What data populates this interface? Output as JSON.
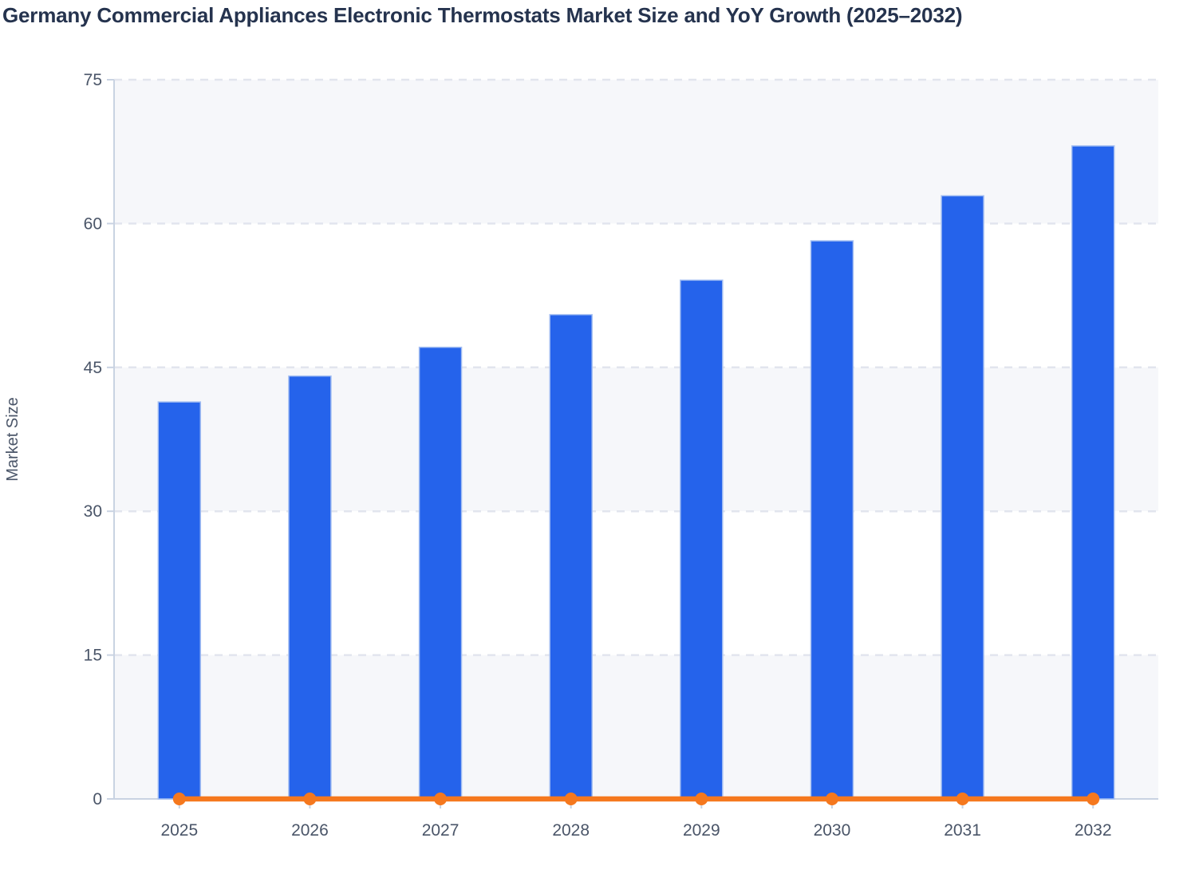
{
  "title": "Germany Commercial Appliances Electronic Thermostats Market Size and YoY Growth (2025–2032)",
  "colors": {
    "background": "#ffffff",
    "title_text": "#25334e",
    "axis_text": "#4a5568",
    "axis_line": "#c9d3e2",
    "gridline": "#e2e5ee",
    "band_fill": "#f6f7fa",
    "bar_fill": "#2563eb",
    "bar_stroke": "#a3bef2",
    "line": "#f5781e"
  },
  "chart_data": {
    "type": "bar",
    "title": "Germany Commercial Appliances Electronic Thermostats Market Size and YoY Growth (2025–2032)",
    "categories": [
      "2025",
      "2026",
      "2027",
      "2028",
      "2029",
      "2030",
      "2031",
      "2032"
    ],
    "series": [
      {
        "name": "Market Size",
        "type": "bar",
        "values": [
          41.4,
          44.1,
          47.1,
          50.5,
          54.1,
          58.2,
          62.9,
          68.1
        ]
      },
      {
        "name": "YoY Growth",
        "type": "line",
        "values": [
          0,
          0,
          0,
          0,
          0,
          0,
          0,
          0
        ]
      }
    ],
    "xlabel": "",
    "ylabel": "Market Size",
    "ylim": [
      0,
      75
    ],
    "yticks": [
      0,
      15,
      30,
      45,
      60,
      75
    ],
    "grid": "horizontal dashed gridlines at each y tick",
    "bands": "alternating light shaded horizontal bands at 0–15, 30–45, 60–75",
    "legend": "none",
    "note": "YoY Growth line is rendered flat along the 0 baseline with a circular marker at each year"
  }
}
